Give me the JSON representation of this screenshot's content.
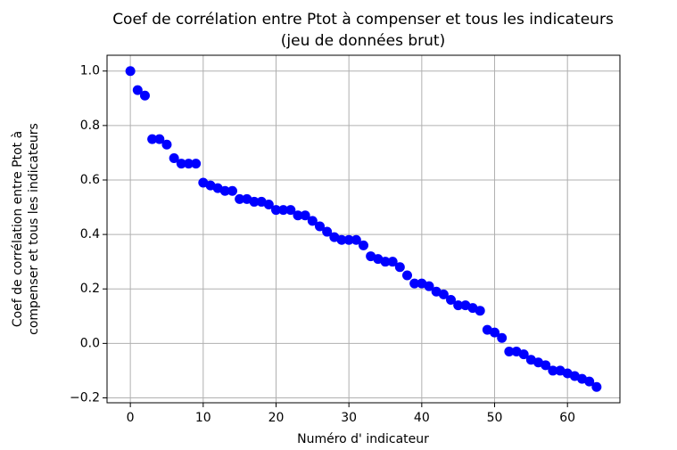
{
  "chart_data": {
    "type": "scatter",
    "title": [
      "Coef de corrélation entre Ptot à compenser et tous les indicateurs",
      "(jeu de données brut)"
    ],
    "xlabel": "Numéro d' indicateur",
    "ylabel": [
      "Coef de corrélation entre Ptot à",
      "compenser et tous les indicateurs"
    ],
    "color": "#0000ff",
    "x": [
      0,
      1,
      2,
      3,
      4,
      5,
      6,
      7,
      8,
      9,
      10,
      11,
      12,
      13,
      14,
      15,
      16,
      17,
      18,
      19,
      20,
      21,
      22,
      23,
      24,
      25,
      26,
      27,
      28,
      29,
      30,
      31,
      32,
      33,
      34,
      35,
      36,
      37,
      38,
      39,
      40,
      41,
      42,
      43,
      44,
      45,
      46,
      47,
      48,
      49,
      50,
      51,
      52,
      53,
      54,
      55,
      56,
      57,
      58,
      59,
      60,
      61,
      62,
      63,
      64
    ],
    "values": [
      1.0,
      0.93,
      0.91,
      0.75,
      0.75,
      0.73,
      0.68,
      0.66,
      0.66,
      0.66,
      0.59,
      0.58,
      0.57,
      0.56,
      0.56,
      0.53,
      0.53,
      0.52,
      0.52,
      0.51,
      0.49,
      0.49,
      0.49,
      0.47,
      0.47,
      0.45,
      0.43,
      0.41,
      0.39,
      0.38,
      0.38,
      0.38,
      0.36,
      0.32,
      0.31,
      0.3,
      0.3,
      0.28,
      0.25,
      0.22,
      0.22,
      0.21,
      0.19,
      0.18,
      0.16,
      0.14,
      0.14,
      0.13,
      0.12,
      0.05,
      0.04,
      0.02,
      -0.03,
      -0.03,
      -0.04,
      -0.06,
      -0.07,
      -0.08,
      -0.1,
      -0.1,
      -0.11,
      -0.12,
      -0.13,
      -0.14,
      -0.16
    ],
    "xlim": [
      -3.2,
      67.2
    ],
    "ylim": [
      -0.218,
      1.058
    ],
    "xticks": [
      0,
      10,
      20,
      30,
      40,
      50,
      60
    ],
    "yticks": [
      {
        "value": -0.2,
        "label": "−0.2"
      },
      {
        "value": 0,
        "label": "0.0"
      },
      {
        "value": 0.2,
        "label": "0.2"
      },
      {
        "value": 0.4,
        "label": "0.4"
      },
      {
        "value": 0.6,
        "label": "0.6"
      },
      {
        "value": 0.8,
        "label": "0.8"
      },
      {
        "value": 1,
        "label": "1.0"
      }
    ],
    "grid": true
  }
}
